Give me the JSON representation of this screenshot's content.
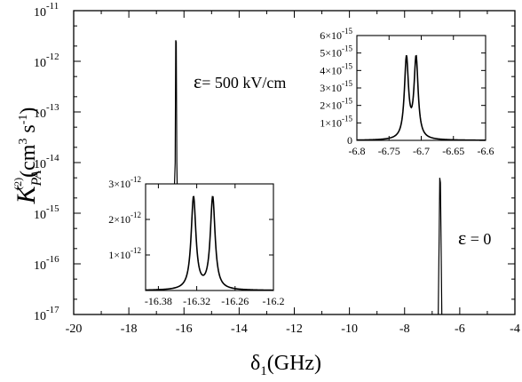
{
  "chart_data": [
    {
      "id": "main",
      "type": "line",
      "title": "",
      "xlabel": "δ₁(GHz)",
      "xlabel_parts": {
        "symbol": "δ",
        "sub": "1",
        "rest": "(GHz)"
      },
      "ylabel": "K_PA^(2) (cm³ s⁻¹)",
      "ylabel_parts": {
        "k": "K",
        "sub": "PA",
        "sup": "(2)",
        "units": "(cm",
        "cube": "3",
        "s": " s",
        "minus": "-1",
        "close": ")"
      },
      "xlim": [
        -20,
        -4
      ],
      "ylim": [
        1e-17,
        1e-11
      ],
      "yscale": "log",
      "xticks": [
        -20,
        -18,
        -16,
        -14,
        -12,
        -10,
        -8,
        -6,
        -4
      ],
      "xtick_labels": [
        "-20",
        "-18",
        "-16",
        "-14",
        "-12",
        "-10",
        "-8",
        "-6",
        "-4"
      ],
      "yticks": [
        {
          "value": 1e-17,
          "base": "10",
          "exp": "-17"
        },
        {
          "value": 1e-16,
          "base": "10",
          "exp": "-16"
        },
        {
          "value": 1e-15,
          "base": "10",
          "exp": "-15"
        },
        {
          "value": 1e-14,
          "base": "10",
          "exp": "-14"
        },
        {
          "value": 1e-13,
          "base": "10",
          "exp": "-13"
        },
        {
          "value": 1e-12,
          "base": "10",
          "exp": "-12"
        },
        {
          "value": 1e-11,
          "base": "10",
          "exp": "-11"
        }
      ],
      "series": [
        {
          "x": [
            -16.36,
            -16.32,
            -16.3,
            -16.28,
            -16.26,
            -16.24
          ],
          "y": [
            2e-15,
            1e-14,
            2.6e-12,
            2.4e-12,
            1e-14,
            2e-15
          ]
        },
        {
          "x": [
            -6.78,
            -6.745,
            -6.725,
            -6.7,
            -6.68,
            -6.65
          ],
          "y": [
            1e-17,
            4e-16,
            5e-15,
            4e-15,
            4e-16,
            1e-17
          ]
        }
      ],
      "annotations": [
        {
          "text": "ε= 500 kV/cm",
          "symbol": "ε",
          "rest": "= 500 kV/cm"
        },
        {
          "text": "ε = 0",
          "symbol": "ε",
          "rest": " = 0"
        }
      ]
    },
    {
      "id": "inset_right",
      "type": "line",
      "xlim": [
        -6.8,
        -6.6
      ],
      "ylim": [
        0,
        6e-15
      ],
      "xticks": [
        -6.8,
        -6.75,
        -6.7,
        -6.65,
        -6.6
      ],
      "xtick_labels": [
        "-6.8",
        "-6.75",
        "-6.7",
        "-6.65",
        "-6.6"
      ],
      "yticks": [
        {
          "value": 0,
          "mant": "0",
          "exp": ""
        },
        {
          "value": 1e-15,
          "mant": "1×10",
          "exp": "-15"
        },
        {
          "value": 2e-15,
          "mant": "2×10",
          "exp": "-15"
        },
        {
          "value": 3e-15,
          "mant": "3×10",
          "exp": "-15"
        },
        {
          "value": 4e-15,
          "mant": "4×10",
          "exp": "-15"
        },
        {
          "value": 5e-15,
          "mant": "5×10",
          "exp": "-15"
        },
        {
          "value": 6e-15,
          "mant": "6×10",
          "exp": "-15"
        }
      ],
      "peaks": [
        {
          "x0": -6.723,
          "height": 4.6e-15,
          "gamma": 0.0038
        },
        {
          "x0": -6.708,
          "height": 4.6e-15,
          "gamma": 0.0038
        }
      ]
    },
    {
      "id": "inset_left",
      "type": "line",
      "xlim": [
        -16.4,
        -16.2
      ],
      "ylim": [
        0,
        3e-12
      ],
      "xticks": [
        -16.38,
        -16.32,
        -16.26,
        -16.2
      ],
      "xtick_labels": [
        "-16.38",
        "-16.32",
        "-16.26",
        "-16.2"
      ],
      "yticks": [
        {
          "value": 1e-12,
          "mant": "1×10",
          "exp": "-12"
        },
        {
          "value": 2e-12,
          "mant": "2×10",
          "exp": "-12"
        },
        {
          "value": 3e-12,
          "mant": "3×10",
          "exp": "-12"
        }
      ],
      "peaks": [
        {
          "x0": -16.325,
          "height": 2.6e-12,
          "gamma": 0.0045
        },
        {
          "x0": -16.295,
          "height": 2.6e-12,
          "gamma": 0.0045
        }
      ]
    }
  ]
}
